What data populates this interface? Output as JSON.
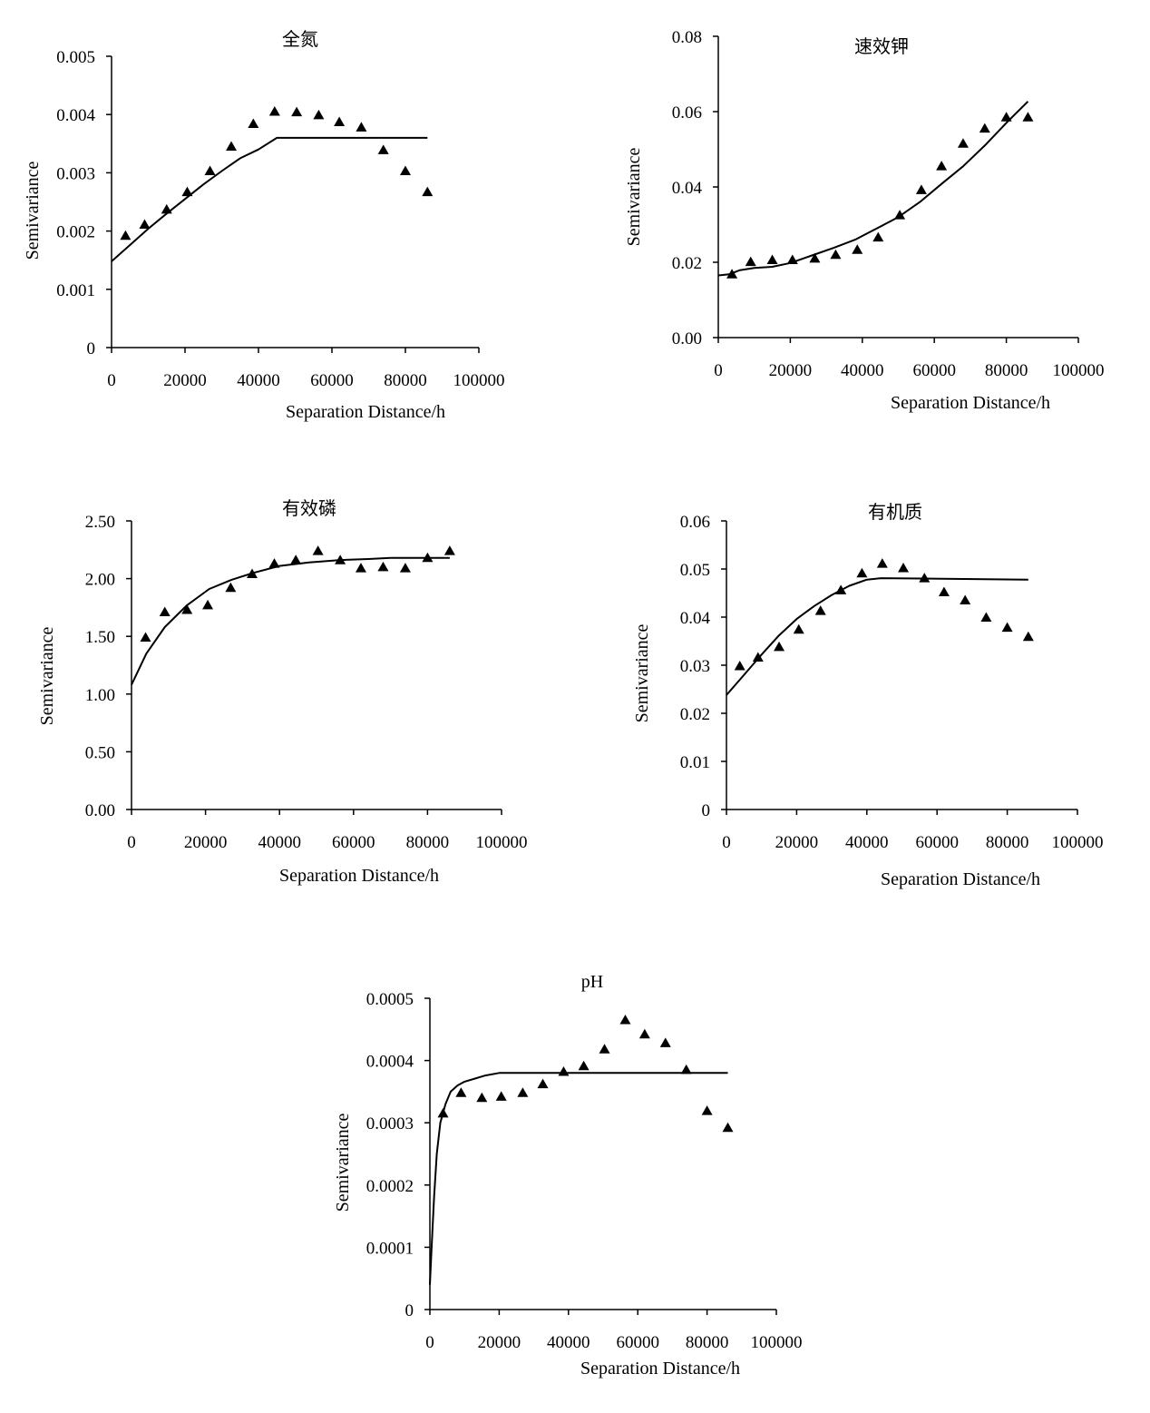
{
  "chart_data": [
    {
      "type": "scatter",
      "title": "全氮",
      "xlabel": "Separation Distance/h",
      "ylabel": "Semivariance",
      "xlim": [
        0,
        100000
      ],
      "ylim": [
        0,
        0.005
      ],
      "x_ticks": [
        "0",
        "20000",
        "40000",
        "60000",
        "80000",
        "100000"
      ],
      "y_ticks": [
        "0",
        "0.001",
        "0.002",
        "0.003",
        "0.004",
        "0.005"
      ],
      "grid": false,
      "series": [
        {
          "marker": "triangle",
          "x": [
            3800,
            9000,
            15000,
            20600,
            26800,
            32600,
            38600,
            44400,
            50400,
            56400,
            62000,
            68000,
            74000,
            80000,
            86000
          ],
          "y": [
            0.00192,
            0.00211,
            0.00237,
            0.00267,
            0.00303,
            0.00345,
            0.00384,
            0.00405,
            0.00404,
            0.00399,
            0.00387,
            0.00378,
            0.00339,
            0.00303,
            0.00267
          ]
        },
        {
          "marker": "none",
          "x": [
            0,
            5000,
            10000,
            15000,
            20000,
            25000,
            30000,
            35000,
            40000,
            45000,
            86000
          ],
          "y": [
            0.00148,
            0.00176,
            0.00204,
            0.0023,
            0.00255,
            0.0028,
            0.00303,
            0.00325,
            0.0034,
            0.0036,
            0.0036
          ]
        }
      ]
    },
    {
      "type": "scatter",
      "title": "速效钾",
      "xlabel": "Separation Distance/h",
      "ylabel": "Semivariance",
      "xlim": [
        0,
        100000
      ],
      "ylim": [
        0,
        0.08
      ],
      "x_ticks": [
        "0",
        "20000",
        "40000",
        "60000",
        "80000",
        "100000"
      ],
      "y_ticks": [
        "0.00",
        "0.02",
        "0.04",
        "0.06",
        "0.08"
      ],
      "grid": false,
      "series": [
        {
          "marker": "triangle",
          "x": [
            3800,
            9000,
            15000,
            20600,
            26800,
            32600,
            38600,
            44400,
            50400,
            56400,
            62000,
            68000,
            74000,
            80000,
            86000
          ],
          "y": [
            0.0168,
            0.0201,
            0.0206,
            0.0206,
            0.021,
            0.022,
            0.0233,
            0.0266,
            0.0325,
            0.0392,
            0.0455,
            0.0515,
            0.0555,
            0.0585,
            0.0585
          ]
        },
        {
          "marker": "none",
          "x": [
            0,
            3000,
            6000,
            10000,
            15000,
            20000,
            26000,
            32000,
            38000,
            44000,
            50000,
            56000,
            62000,
            68000,
            74000,
            80000,
            86000
          ],
          "y": [
            0.0165,
            0.0168,
            0.0179,
            0.0185,
            0.0188,
            0.0198,
            0.0218,
            0.0238,
            0.026,
            0.029,
            0.032,
            0.036,
            0.0408,
            0.0455,
            0.051,
            0.057,
            0.0627
          ]
        }
      ]
    },
    {
      "type": "scatter",
      "title": "有效磷",
      "xlabel": "Separation Distance/h",
      "ylabel": "Semivariance",
      "xlim": [
        0,
        100000
      ],
      "ylim": [
        0,
        2.5
      ],
      "x_ticks": [
        "0",
        "20000",
        "40000",
        "60000",
        "80000",
        "100000"
      ],
      "y_ticks": [
        "0.00",
        "0.50",
        "1.00",
        "1.50",
        "2.00",
        "2.50"
      ],
      "grid": false,
      "series": [
        {
          "marker": "triangle",
          "x": [
            3800,
            9000,
            15000,
            20600,
            26800,
            32600,
            38600,
            44400,
            50400,
            56400,
            62000,
            68000,
            74000,
            80000,
            86000
          ],
          "y": [
            1.49,
            1.71,
            1.73,
            1.77,
            1.92,
            2.04,
            2.13,
            2.16,
            2.24,
            2.16,
            2.09,
            2.1,
            2.09,
            2.18,
            2.24
          ]
        },
        {
          "marker": "none",
          "x": [
            0,
            4000,
            9000,
            15000,
            21000,
            27000,
            33000,
            40000,
            48000,
            56000,
            64000,
            70000,
            86000
          ],
          "y": [
            1.08,
            1.35,
            1.58,
            1.77,
            1.91,
            1.99,
            2.05,
            2.11,
            2.14,
            2.16,
            2.17,
            2.18,
            2.18
          ]
        }
      ]
    },
    {
      "type": "scatter",
      "title": "有机质",
      "xlabel": "Separation Distance/h",
      "ylabel": "Semivariance",
      "xlim": [
        0,
        100000
      ],
      "ylim": [
        0,
        0.06
      ],
      "x_ticks": [
        "0",
        "20000",
        "40000",
        "60000",
        "80000",
        "100000"
      ],
      "y_ticks": [
        "0",
        "0.01",
        "0.02",
        "0.03",
        "0.04",
        "0.05",
        "0.06"
      ],
      "grid": false,
      "series": [
        {
          "marker": "triangle",
          "x": [
            3800,
            9000,
            15000,
            20600,
            26800,
            32600,
            38600,
            44400,
            50400,
            56400,
            62000,
            68000,
            74000,
            80000,
            86000
          ],
          "y": [
            0.0298,
            0.0316,
            0.0338,
            0.0374,
            0.0413,
            0.0456,
            0.0491,
            0.0511,
            0.0502,
            0.0481,
            0.0452,
            0.0435,
            0.0399,
            0.0378,
            0.0359
          ]
        },
        {
          "marker": "none",
          "x": [
            0,
            5000,
            10000,
            15000,
            20000,
            25000,
            30000,
            35000,
            40000,
            44000,
            86000
          ],
          "y": [
            0.0238,
            0.028,
            0.0322,
            0.0362,
            0.0396,
            0.0423,
            0.0446,
            0.0465,
            0.0478,
            0.0481,
            0.0478
          ]
        }
      ]
    },
    {
      "type": "scatter",
      "title": "pH",
      "xlabel": "Separation Distance/h",
      "ylabel": "Semivariance",
      "xlim": [
        0,
        100000
      ],
      "ylim": [
        0,
        0.0005
      ],
      "x_ticks": [
        "0",
        "20000",
        "40000",
        "60000",
        "80000",
        "100000"
      ],
      "y_ticks": [
        "0",
        "0.0001",
        "0.0002",
        "0.0003",
        "0.0004",
        "0.0005"
      ],
      "grid": false,
      "series": [
        {
          "marker": "triangle",
          "x": [
            3800,
            9000,
            15000,
            20600,
            26800,
            32600,
            38600,
            44400,
            50400,
            56400,
            62000,
            68000,
            74000,
            80000,
            86000
          ],
          "y": [
            0.000315,
            0.000348,
            0.00034,
            0.000342,
            0.000348,
            0.000362,
            0.000382,
            0.000391,
            0.000418,
            0.000465,
            0.000442,
            0.000428,
            0.000385,
            0.000319,
            0.000292
          ]
        },
        {
          "marker": "none",
          "x": [
            0,
            500,
            1200,
            2000,
            3000,
            4500,
            6000,
            8000,
            10000,
            13000,
            16000,
            20000,
            86000
          ],
          "y": [
            4e-05,
            0.0001,
            0.00018,
            0.00025,
            0.0003,
            0.00033,
            0.00035,
            0.00036,
            0.000366,
            0.000371,
            0.000376,
            0.00038,
            0.00038
          ]
        }
      ]
    }
  ]
}
